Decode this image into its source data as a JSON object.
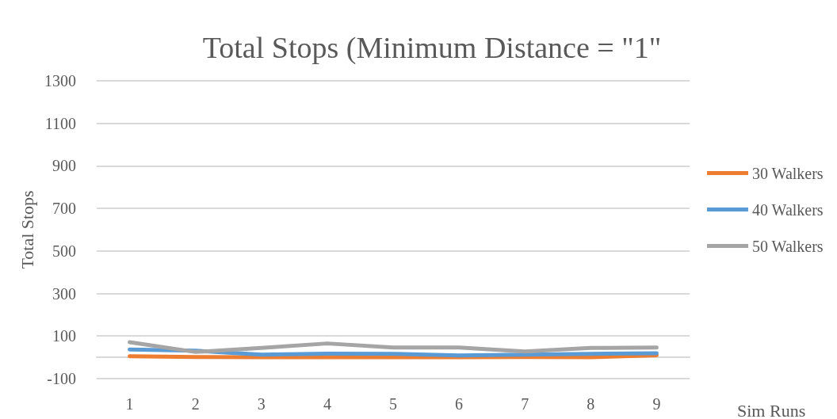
{
  "chart_data": {
    "type": "line",
    "title": "Total Stops (Minimum Distance = \"1\"",
    "xlabel": "Sim Runs",
    "ylabel": "Total Stops",
    "categories": [
      "1",
      "2",
      "3",
      "4",
      "5",
      "6",
      "7",
      "8",
      "9"
    ],
    "series": [
      {
        "name": "30 Walkers",
        "color": "#ed7d31",
        "values": [
          5,
          1,
          0,
          0,
          0,
          0,
          1,
          0,
          10
        ]
      },
      {
        "name": "40 Walkers",
        "color": "#5b9bd5",
        "values": [
          37,
          31,
          12,
          17,
          16,
          9,
          12,
          16,
          19
        ]
      },
      {
        "name": "50 Walkers",
        "color": "#a5a5a5",
        "values": [
          71,
          25,
          44,
          65,
          46,
          46,
          27,
          44,
          46
        ]
      }
    ],
    "ylim": [
      -100,
      1300
    ],
    "yticks": [
      -100,
      100,
      300,
      500,
      700,
      900,
      1100,
      1300
    ],
    "grid": "y",
    "legend": "right",
    "marker": "none",
    "line_style": "solid"
  }
}
